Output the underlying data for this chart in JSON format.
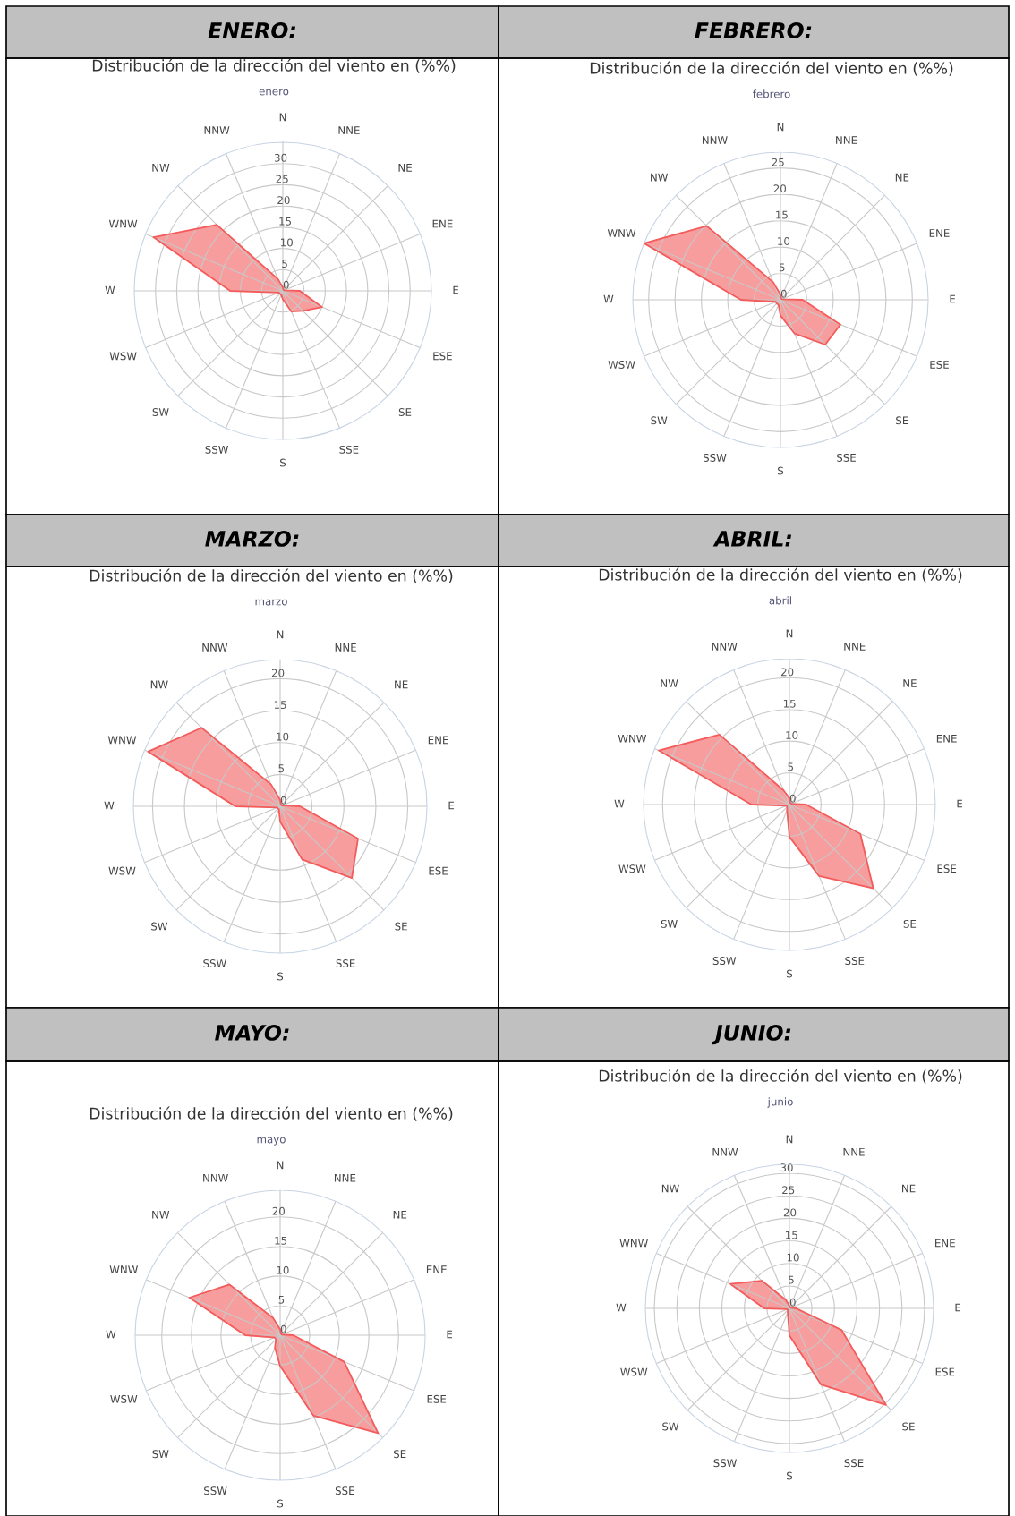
{
  "chart_data": [
    {
      "type": "radar",
      "title": "Distribución de la dirección del viento en (%%)",
      "subtitle": "enero",
      "annotations": [
        "ENERO:"
      ],
      "categories": [
        "N",
        "NNE",
        "NE",
        "ENE",
        "E",
        "ESE",
        "SE",
        "SSE",
        "S",
        "SSW",
        "SW",
        "WSW",
        "W",
        "WNW",
        "NW",
        "NNW"
      ],
      "ylim": [
        0,
        35
      ],
      "yticks": [
        0,
        5,
        10,
        15,
        20,
        25,
        30
      ],
      "grid": true,
      "series": [
        {
          "color": "#f45b5b",
          "values": [
            0.8,
            0.3,
            0.3,
            0.3,
            4,
            10,
            6.7,
            5.3,
            2,
            1,
            1,
            1,
            12.4,
            33,
            22,
            3
          ]
        }
      ]
    },
    {
      "type": "radar",
      "title": "Distribución de la dirección del viento en (%%)",
      "subtitle": "febrero",
      "annotations": [
        "FEBRERO:"
      ],
      "categories": [
        "N",
        "NNE",
        "NE",
        "ENE",
        "E",
        "ESE",
        "SE",
        "SSE",
        "S",
        "SSW",
        "SW",
        "WSW",
        "W",
        "WNW",
        "NW",
        "NNW"
      ],
      "ylim": [
        0,
        28
      ],
      "yticks": [
        0,
        5,
        10,
        15,
        20,
        25
      ],
      "grid": true,
      "series": [
        {
          "color": "#f45b5b",
          "values": [
            1,
            0.3,
            0.3,
            0.3,
            4.2,
            12.3,
            12,
            6.9,
            3,
            1,
            1,
            1,
            7.5,
            28,
            19.8,
            3.6
          ]
        }
      ]
    },
    {
      "type": "radar",
      "title": "Distribución de la dirección del viento en (%%)",
      "subtitle": "marzo",
      "annotations": [
        "MARZO:"
      ],
      "categories": [
        "N",
        "NNE",
        "NE",
        "ENE",
        "E",
        "ESE",
        "SE",
        "SSE",
        "S",
        "SSW",
        "SW",
        "WSW",
        "W",
        "WNW",
        "NW",
        "NNW"
      ],
      "ylim": [
        0,
        23
      ],
      "yticks": [
        0,
        5,
        10,
        15,
        20
      ],
      "grid": true,
      "series": [
        {
          "color": "#f45b5b",
          "values": [
            1,
            0.3,
            0.3,
            0.3,
            3.1,
            13.2,
            15.9,
            9,
            2.4,
            0.5,
            0.5,
            0.5,
            7,
            22.4,
            17.4,
            3.7
          ]
        }
      ]
    },
    {
      "type": "radar",
      "title": "Distribución de la dirección del viento en (%%)",
      "subtitle": "abril",
      "annotations": [
        "ABRIL:"
      ],
      "categories": [
        "N",
        "NNE",
        "NE",
        "ENE",
        "E",
        "ESE",
        "SE",
        "SSE",
        "S",
        "SSW",
        "SW",
        "WSW",
        "W",
        "WNW",
        "NW",
        "NNW"
      ],
      "ylim": [
        0,
        23
      ],
      "yticks": [
        0,
        5,
        10,
        15,
        20
      ],
      "grid": true,
      "series": [
        {
          "color": "#f45b5b",
          "values": [
            1,
            0.3,
            0.3,
            0.3,
            2.6,
            12.1,
            18.7,
            12.2,
            5.1,
            1,
            0.5,
            0.5,
            6,
            22.3,
            15.6,
            2.4
          ]
        }
      ]
    },
    {
      "type": "radar",
      "title": "Distribución de la dirección del viento en (%%)",
      "subtitle": "mayo",
      "annotations": [
        "MAYO:"
      ],
      "categories": [
        "N",
        "NNE",
        "NE",
        "ENE",
        "E",
        "ESE",
        "SE",
        "SSE",
        "S",
        "SSW",
        "SW",
        "WSW",
        "W",
        "WNW",
        "NW",
        "NNW"
      ],
      "ylim": [
        0,
        24.5
      ],
      "yticks": [
        0,
        5,
        10,
        15,
        20
      ],
      "grid": true,
      "series": [
        {
          "color": "#f45b5b",
          "values": [
            1,
            0.3,
            0.3,
            0.3,
            2.2,
            11.7,
            23.4,
            14.7,
            5.2,
            2.3,
            1,
            1,
            5.9,
            16.6,
            12.1,
            3.2
          ]
        }
      ]
    },
    {
      "type": "radar",
      "title": "Distribución de la dirección del viento en (%%)",
      "subtitle": "junio",
      "annotations": [
        "JUNIO:"
      ],
      "categories": [
        "N",
        "NNE",
        "NE",
        "ENE",
        "E",
        "ESE",
        "SE",
        "SSE",
        "S",
        "SSW",
        "SW",
        "WSW",
        "W",
        "WNW",
        "NW",
        "NNW"
      ],
      "ylim": [
        0,
        32
      ],
      "yticks": [
        0,
        5,
        10,
        15,
        20,
        25,
        30
      ],
      "grid": true,
      "series": [
        {
          "color": "#f45b5b",
          "values": [
            0.5,
            0.3,
            0.3,
            0.3,
            1.5,
            12.5,
            30.3,
            18.3,
            6,
            1,
            0.5,
            0.5,
            5.6,
            14.2,
            8.7,
            2
          ]
        }
      ]
    }
  ]
}
